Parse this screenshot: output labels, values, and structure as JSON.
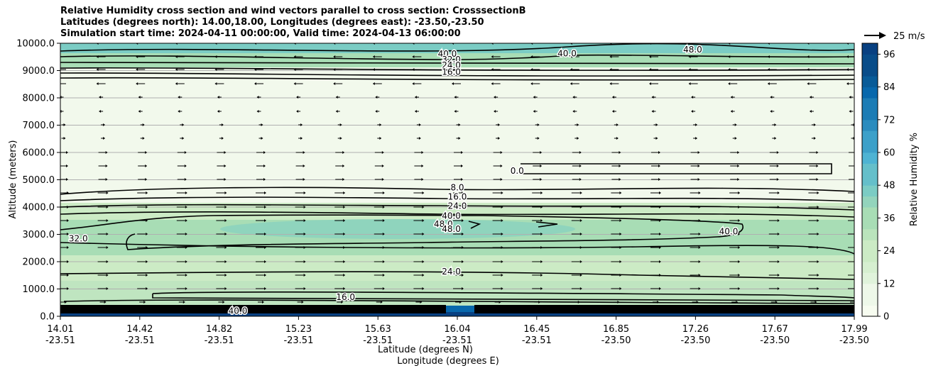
{
  "titles": {
    "line1": "Relative Humidity cross section and wind vectors parallel to cross section: CrosssectionB",
    "line2": "Latitudes (degrees north): 14.00,18.00, Longitudes (degrees east): -23.50,-23.50",
    "line3": "Simulation start time: 2024-04-11 00:00:00, Valid time: 2024-04-13 06:00:00"
  },
  "chart_data": {
    "type": "contour",
    "title": "Relative Humidity cross section and wind vectors parallel to cross section: CrosssectionB",
    "ylabel": "Altitude (meters)",
    "xlabel_line1": "Latitude (degrees N)",
    "xlabel_line2": "Longitude (degrees E)",
    "ylim": [
      0,
      10000
    ],
    "y_ticks": [
      "0.0",
      "1000.0",
      "2000.0",
      "3000.0",
      "4000.0",
      "5000.0",
      "6000.0",
      "7000.0",
      "8000.0",
      "9000.0",
      "10000.0"
    ],
    "x_tick_lat": [
      "14.01",
      "14.42",
      "14.82",
      "15.23",
      "15.63",
      "16.04",
      "16.45",
      "16.85",
      "17.26",
      "17.67",
      "17.99"
    ],
    "x_tick_lon": [
      "-23.51",
      "-23.51",
      "-23.51",
      "-23.51",
      "-23.51",
      "-23.51",
      "-23.51",
      "-23.50",
      "-23.50",
      "-23.50",
      "-23.50"
    ],
    "grid": "horizontal",
    "colorbar": {
      "label": "Relative Humidity %",
      "range": [
        0,
        100
      ],
      "ticks": [
        "0",
        "12",
        "24",
        "36",
        "48",
        "60",
        "72",
        "84",
        "96"
      ],
      "colormap": "GnBu",
      "colors": [
        "#f7fcf0",
        "#e0f3db",
        "#ccebc5",
        "#a8ddb5",
        "#7bccc4",
        "#4eb3d3",
        "#2b8cbe",
        "#0868ac",
        "#084081"
      ]
    },
    "wind_key": "25 m/s",
    "contour_labels": [
      {
        "text": "8.0",
        "x": 16.0,
        "y": 4720
      },
      {
        "text": "16.0",
        "x": 16.0,
        "y": 4380
      },
      {
        "text": "24.0",
        "x": 16.0,
        "y": 4040
      },
      {
        "text": "40.0",
        "x": 15.97,
        "y": 3680
      },
      {
        "text": "48.0",
        "x": 15.93,
        "y": 3380
      },
      {
        "text": "48.0",
        "x": 15.97,
        "y": 3200
      },
      {
        "text": "32.0",
        "x": 14.1,
        "y": 2850
      },
      {
        "text": "24.0",
        "x": 15.97,
        "y": 1630
      },
      {
        "text": "40.0",
        "x": 15.95,
        "y": 9610
      },
      {
        "text": "32.0",
        "x": 15.97,
        "y": 9400
      },
      {
        "text": "24.0",
        "x": 15.97,
        "y": 9200
      },
      {
        "text": "16.0",
        "x": 15.97,
        "y": 8950
      },
      {
        "text": "40.0",
        "x": 16.55,
        "y": 9620
      },
      {
        "text": "48.0",
        "x": 17.18,
        "y": 9760
      },
      {
        "text": "0.0",
        "x": 16.3,
        "y": 5330
      },
      {
        "text": "40.0",
        "x": 17.36,
        "y": 3100
      },
      {
        "text": "16.0",
        "x": 15.44,
        "y": 700
      },
      {
        "text": "40.0",
        "x": 14.9,
        "y": 200
      }
    ]
  }
}
